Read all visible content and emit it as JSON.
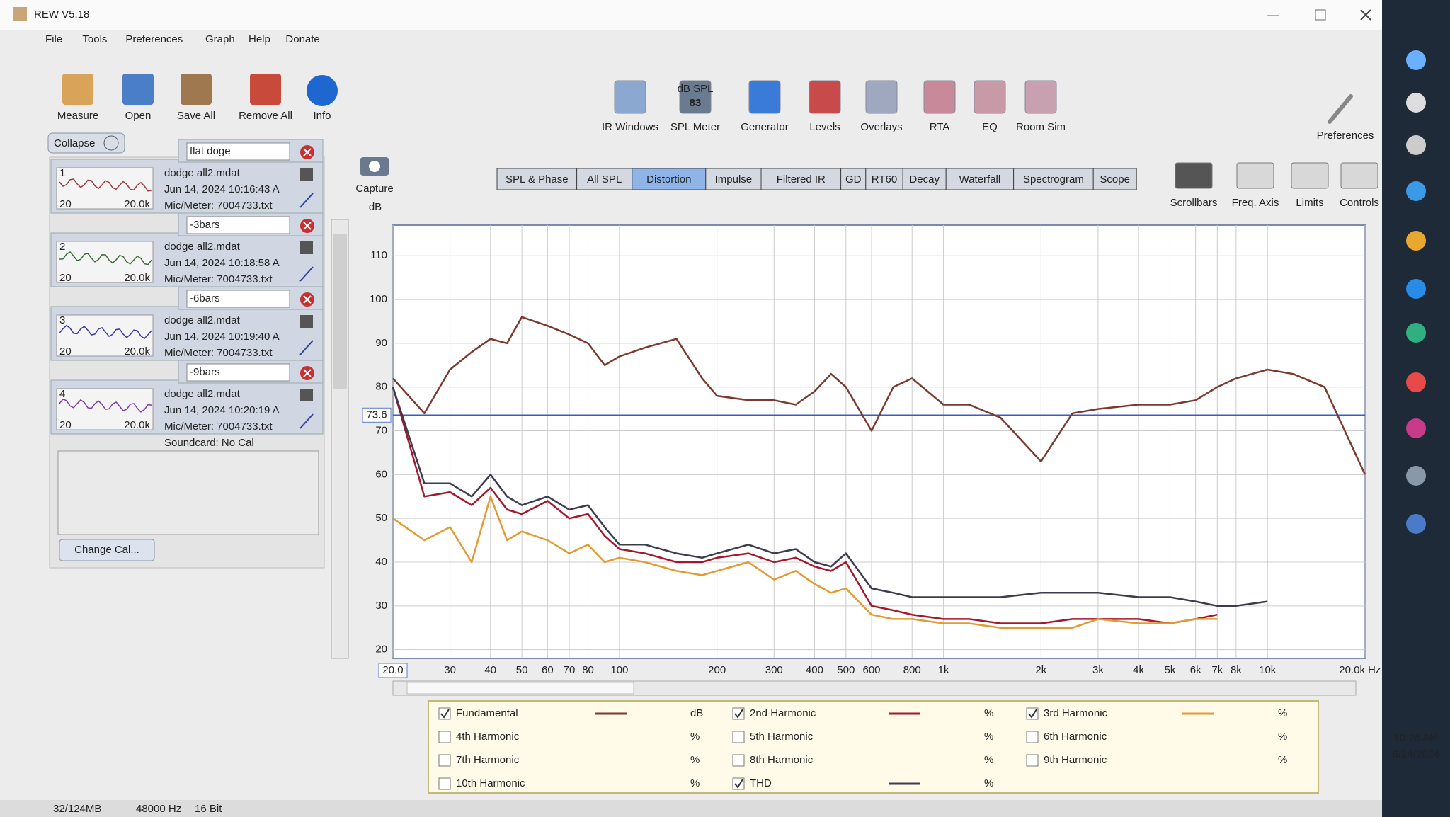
{
  "window": {
    "title": "REW V5.18"
  },
  "menu": [
    "File",
    "Tools",
    "Preferences",
    "Graph",
    "Help",
    "Donate"
  ],
  "toolbar_left": [
    "Measure",
    "Open",
    "Save All",
    "Remove All",
    "Info"
  ],
  "toolbar_center": [
    "IR Windows",
    "SPL Meter",
    "Generator",
    "Levels",
    "Overlays",
    "RTA",
    "EQ",
    "Room Sim"
  ],
  "spl_meter_icon": {
    "unit": "dB SPL",
    "reading": "83"
  },
  "toolbar_right": "Preferences",
  "collapse": "Collapse",
  "measurements": [
    {
      "number": "1",
      "name": "flat doge",
      "file": "dodge all2.mdat",
      "date": "Jun 14, 2024 10:16:43 A",
      "mic": "Mic/Meter: 7004733.txt",
      "thumb_min": "20",
      "thumb_max": "20.0k"
    },
    {
      "number": "2",
      "name": "-3bars",
      "file": "dodge all2.mdat",
      "date": "Jun 14, 2024 10:18:58 A",
      "mic": "Mic/Meter: 7004733.txt",
      "thumb_min": "20",
      "thumb_max": "20.0k"
    },
    {
      "number": "3",
      "name": "-6bars",
      "file": "dodge all2.mdat",
      "date": "Jun 14, 2024 10:19:40 A",
      "mic": "Mic/Meter: 7004733.txt",
      "thumb_min": "20",
      "thumb_max": "20.0k"
    },
    {
      "number": "4",
      "name": "-9bars",
      "file": "dodge all2.mdat",
      "date": "Jun 14, 2024 10:20:19 A",
      "mic": "Mic/Meter: 7004733.txt",
      "soundcard": "Soundcard: No Cal",
      "thumb_min": "20",
      "thumb_max": "20.0k"
    }
  ],
  "change_cal": "Change Cal...",
  "capture": "Capture",
  "tabs": [
    {
      "label": "SPL & Phase",
      "active": false
    },
    {
      "label": "All SPL",
      "active": false
    },
    {
      "label": "Distortion",
      "active": true
    },
    {
      "label": "Impulse",
      "active": false
    },
    {
      "label": "Filtered IR",
      "active": false
    },
    {
      "label": "GD",
      "active": false
    },
    {
      "label": "RT60",
      "active": false
    },
    {
      "label": "Decay",
      "active": false
    },
    {
      "label": "Waterfall",
      "active": false
    },
    {
      "label": "Spectrogram",
      "active": false
    },
    {
      "label": "Scope",
      "active": false
    }
  ],
  "graph_tools": [
    "Scrollbars",
    "Freq. Axis",
    "Limits",
    "Controls"
  ],
  "chart_data": {
    "type": "line",
    "y_label": "dB",
    "x_unit": "Hz",
    "x_scale": "log",
    "grid": true,
    "xlim": [
      20,
      20000
    ],
    "ylim": [
      18,
      117
    ],
    "cursor": 73.6,
    "xticks": [
      {
        "value": 20,
        "label": "20.0"
      },
      30,
      40,
      50,
      60,
      70,
      80,
      100,
      200,
      300,
      400,
      500,
      600,
      800,
      {
        "value": 1000,
        "label": "1k"
      },
      {
        "value": 2000,
        "label": "2k"
      },
      {
        "value": 3000,
        "label": "3k"
      },
      {
        "value": 4000,
        "label": "4k"
      },
      {
        "value": 5000,
        "label": "5k"
      },
      {
        "value": 6000,
        "label": "6k"
      },
      {
        "value": 7000,
        "label": "7k"
      },
      {
        "value": 8000,
        "label": "8k"
      },
      {
        "value": 10000,
        "label": "10k"
      },
      {
        "value": 20000,
        "label": "20.0k"
      }
    ],
    "yticks": [
      20,
      30,
      40,
      50,
      60,
      70,
      80,
      90,
      100,
      110
    ],
    "x": [
      20,
      25,
      30,
      35,
      40,
      45,
      50,
      60,
      70,
      80,
      90,
      100,
      120,
      150,
      180,
      200,
      250,
      300,
      350,
      400,
      450,
      500,
      600,
      700,
      800,
      1000,
      1200,
      1500,
      2000,
      2500,
      3000,
      4000,
      5000,
      6000,
      7000,
      8000,
      10000,
      12000,
      15000,
      20000
    ],
    "series": [
      {
        "name": "Fundamental",
        "unit": "dB",
        "checked": true,
        "color": "#7a3a2e",
        "values": [
          82,
          74,
          84,
          88,
          91,
          90,
          96,
          94,
          92,
          90,
          85,
          87,
          89,
          91,
          82,
          78,
          77,
          77,
          76,
          79,
          83,
          80,
          70,
          80,
          82,
          76,
          76,
          73,
          63,
          74,
          75,
          76,
          76,
          77,
          80,
          82,
          84,
          83,
          80,
          60
        ]
      },
      {
        "name": "2nd Harmonic",
        "unit": "%",
        "checked": true,
        "color": "#a3182c",
        "values": [
          80,
          55,
          56,
          53,
          57,
          52,
          51,
          54,
          50,
          51,
          46,
          43,
          42,
          40,
          40,
          41,
          42,
          40,
          41,
          39,
          38,
          40,
          30,
          29,
          28,
          27,
          27,
          26,
          26,
          27,
          27,
          27,
          26,
          27,
          28,
          null,
          null,
          null,
          null,
          null
        ]
      },
      {
        "name": "3rd Harmonic",
        "unit": "%",
        "checked": true,
        "color": "#e39a32",
        "values": [
          50,
          45,
          48,
          40,
          55,
          45,
          47,
          45,
          42,
          44,
          40,
          41,
          40,
          38,
          37,
          38,
          40,
          36,
          38,
          35,
          33,
          34,
          28,
          27,
          27,
          26,
          26,
          25,
          25,
          25,
          27,
          26,
          26,
          27,
          27,
          null,
          null,
          null,
          null,
          null
        ]
      },
      {
        "name": "4th Harmonic",
        "unit": "%",
        "checked": false,
        "color": "#d8c860"
      },
      {
        "name": "5th Harmonic",
        "unit": "%",
        "checked": false,
        "color": "#e0a0b8"
      },
      {
        "name": "6th Harmonic",
        "unit": "%",
        "checked": false,
        "color": "#a0c8a0"
      },
      {
        "name": "7th Harmonic",
        "unit": "%",
        "checked": false,
        "color": "#e0b8c8"
      },
      {
        "name": "8th Harmonic",
        "unit": "%",
        "checked": false,
        "color": "#c8c8c8"
      },
      {
        "name": "9th Harmonic",
        "unit": "%",
        "checked": false,
        "color": "#30b0c8"
      },
      {
        "name": "10th Harmonic",
        "unit": "%",
        "checked": false,
        "color": "#555555"
      },
      {
        "name": "THD",
        "unit": "%",
        "checked": true,
        "color": "#3c3c4c",
        "values": [
          80,
          58,
          58,
          55,
          60,
          55,
          53,
          55,
          52,
          53,
          48,
          44,
          44,
          42,
          41,
          42,
          44,
          42,
          43,
          40,
          39,
          42,
          34,
          33,
          32,
          32,
          32,
          32,
          33,
          33,
          33,
          32,
          32,
          31,
          30,
          30,
          31,
          null,
          null,
          null
        ]
      }
    ]
  },
  "status_bar": [
    "32/124MB",
    "48000 Hz",
    "16 Bit"
  ],
  "taskbar": {
    "time": "10:26 AM",
    "date": "6/14/2024"
  }
}
